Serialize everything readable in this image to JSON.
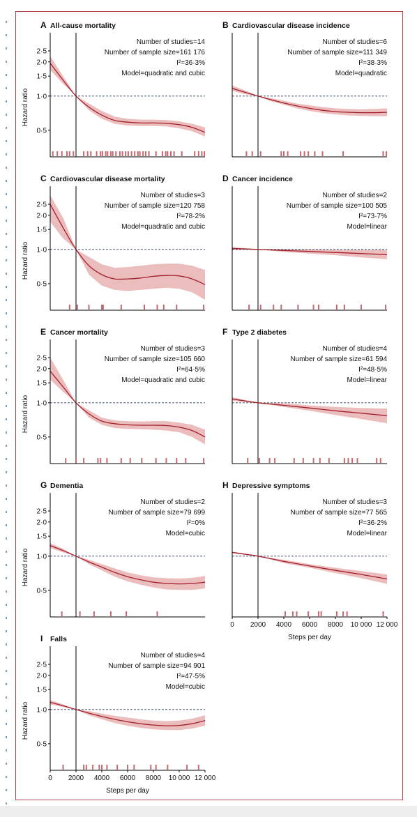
{
  "colors": {
    "curve": "#a31f2c",
    "band": "#e8b2b2",
    "rug": "#c26a70",
    "frame": "#b5404a",
    "reference": "#2c3e60"
  },
  "chart_data": [
    {
      "type": "line",
      "letter": "A",
      "title": "All-cause mortality",
      "stats": [
        "Number of studies=14",
        "Number of sample size=161 176",
        "I²=36·3%",
        "Model=quadratic and cubic"
      ],
      "ylabel": "Hazard ratio",
      "xlabel": "",
      "log_y": true,
      "ylim": [
        0.3,
        2.8
      ],
      "xlim": [
        0,
        12000
      ],
      "reference_x": 2000,
      "reference_y": 1.0,
      "yticks": [
        0.5,
        1.0,
        1.5,
        2.0,
        2.5
      ],
      "ytick_labels": [
        "0·5",
        "1·0",
        "1·5",
        "2·0",
        "2·5"
      ],
      "xticks": [],
      "xtick_labels": [],
      "x": [
        0,
        1000,
        2000,
        3000,
        4000,
        5000,
        6000,
        7000,
        8000,
        9000,
        10000,
        11000,
        12000
      ],
      "hr": [
        1.95,
        1.38,
        1.0,
        0.8,
        0.68,
        0.61,
        0.59,
        0.58,
        0.58,
        0.575,
        0.56,
        0.53,
        0.48
      ],
      "lower": [
        1.7,
        1.28,
        1.0,
        0.75,
        0.63,
        0.57,
        0.55,
        0.545,
        0.545,
        0.54,
        0.52,
        0.49,
        0.44
      ],
      "upper": [
        2.25,
        1.5,
        1.0,
        0.86,
        0.74,
        0.66,
        0.63,
        0.62,
        0.62,
        0.615,
        0.6,
        0.57,
        0.53
      ],
      "rug": [
        200,
        550,
        900,
        1300,
        1500,
        1800,
        2600,
        2900,
        3150,
        3600,
        3900,
        4050,
        4300,
        4450,
        4700,
        4850,
        5100,
        5400,
        5600,
        5850,
        6050,
        6300,
        6550,
        6800,
        6950,
        7200,
        7400,
        7650,
        8200,
        8700,
        8950,
        9100,
        9350,
        9600,
        10200,
        11200,
        11500,
        11750,
        11950
      ]
    },
    {
      "type": "line",
      "letter": "B",
      "title": "Cardiovascular disease incidence",
      "stats": [
        "Number of studies=6",
        "Number of sample size=111 349",
        "I²=38·3%",
        "Model=quadratic"
      ],
      "ylabel": "",
      "xlabel": "",
      "log_y": true,
      "ylim": [
        0.3,
        2.8
      ],
      "xlim": [
        0,
        12000
      ],
      "reference_x": 2000,
      "reference_y": 1.0,
      "yticks": [],
      "ytick_labels": [],
      "xticks": [],
      "xtick_labels": [],
      "x": [
        0,
        1000,
        2000,
        3000,
        4000,
        5000,
        6000,
        7000,
        8000,
        9000,
        10000,
        11000,
        12000
      ],
      "hr": [
        1.17,
        1.08,
        1.0,
        0.93,
        0.87,
        0.82,
        0.78,
        0.75,
        0.73,
        0.72,
        0.715,
        0.715,
        0.72
      ],
      "lower": [
        1.11,
        1.04,
        1.0,
        0.9,
        0.84,
        0.78,
        0.74,
        0.71,
        0.69,
        0.675,
        0.67,
        0.665,
        0.665
      ],
      "upper": [
        1.24,
        1.12,
        1.0,
        0.96,
        0.91,
        0.86,
        0.83,
        0.8,
        0.78,
        0.77,
        0.765,
        0.77,
        0.78
      ],
      "rug": [
        1100,
        1550,
        2200,
        3800,
        4000,
        4300,
        5300,
        5600,
        5900,
        6400,
        7000,
        8600,
        11700,
        11950
      ]
    },
    {
      "type": "line",
      "letter": "C",
      "title": "Cardiovascular disease mortality",
      "stats": [
        "Number of studies=3",
        "Number of sample size=120 758",
        "I²=78·2%",
        "Model=quadratic and cubic"
      ],
      "ylabel": "Hazard ratio",
      "xlabel": "",
      "log_y": true,
      "ylim": [
        0.3,
        2.8
      ],
      "xlim": [
        0,
        12000
      ],
      "reference_x": 2000,
      "reference_y": 1.0,
      "yticks": [
        0.5,
        1.0,
        1.5,
        2.0,
        2.5
      ],
      "ytick_labels": [
        "0·5",
        "1·0",
        "1·5",
        "2·0",
        "2·5"
      ],
      "xticks": [],
      "xtick_labels": [],
      "x": [
        0,
        1000,
        2000,
        3000,
        4000,
        5000,
        6000,
        7000,
        8000,
        9000,
        10000,
        11000,
        12000
      ],
      "hr": [
        2.5,
        1.55,
        1.0,
        0.72,
        0.6,
        0.55,
        0.55,
        0.56,
        0.58,
        0.59,
        0.585,
        0.55,
        0.49
      ],
      "lower": [
        1.75,
        1.25,
        1.0,
        0.6,
        0.48,
        0.44,
        0.43,
        0.44,
        0.45,
        0.46,
        0.45,
        0.42,
        0.36
      ],
      "upper": [
        3.0,
        1.9,
        1.0,
        0.86,
        0.74,
        0.69,
        0.7,
        0.72,
        0.74,
        0.75,
        0.75,
        0.72,
        0.66
      ],
      "rug": [
        1500,
        2100,
        3000,
        4000,
        4100,
        5500,
        7300,
        8300,
        8800,
        9800,
        11900
      ]
    },
    {
      "type": "line",
      "letter": "D",
      "title": "Cancer incidence",
      "stats": [
        "Number of studies=2",
        "Number of sample size=100 505",
        "I²=73·7%",
        "Model=linear"
      ],
      "ylabel": "",
      "xlabel": "",
      "log_y": true,
      "ylim": [
        0.3,
        2.8
      ],
      "xlim": [
        0,
        12000
      ],
      "reference_x": 2000,
      "reference_y": 1.0,
      "yticks": [],
      "ytick_labels": [],
      "xticks": [],
      "xtick_labels": [],
      "x": [
        0,
        2000,
        4000,
        6000,
        8000,
        10000,
        12000
      ],
      "hr": [
        1.02,
        1.0,
        0.98,
        0.96,
        0.94,
        0.92,
        0.9
      ],
      "lower": [
        0.99,
        1.0,
        0.95,
        0.92,
        0.89,
        0.85,
        0.82
      ],
      "upper": [
        1.05,
        1.0,
        1.01,
        1.0,
        0.99,
        0.99,
        0.99
      ],
      "rug": [
        1300,
        2200,
        3200,
        3800,
        5100,
        6300,
        6700,
        8100,
        8700,
        10000,
        11900
      ]
    },
    {
      "type": "line",
      "letter": "E",
      "title": "Cancer mortality",
      "stats": [
        "Number of studies=3",
        "Number of sample size=105 660",
        "I²=64·5%",
        "Model=quadratic and cubic"
      ],
      "ylabel": "Hazard ratio",
      "xlabel": "",
      "log_y": true,
      "ylim": [
        0.3,
        2.8
      ],
      "xlim": [
        0,
        12000
      ],
      "reference_x": 2000,
      "reference_y": 1.0,
      "yticks": [
        0.5,
        1.0,
        1.5,
        2.0,
        2.5
      ],
      "ytick_labels": [
        "0·5",
        "1·0",
        "1·5",
        "2·0",
        "2·5"
      ],
      "xticks": [],
      "xtick_labels": [],
      "x": [
        0,
        1000,
        2000,
        3000,
        4000,
        5000,
        6000,
        7000,
        8000,
        9000,
        10000,
        11000,
        12000
      ],
      "hr": [
        1.9,
        1.38,
        1.0,
        0.8,
        0.69,
        0.655,
        0.64,
        0.635,
        0.635,
        0.63,
        0.61,
        0.57,
        0.5
      ],
      "lower": [
        1.6,
        1.25,
        1.0,
        0.74,
        0.64,
        0.6,
        0.59,
        0.585,
        0.58,
        0.57,
        0.55,
        0.5,
        0.43
      ],
      "upper": [
        2.5,
        1.6,
        1.0,
        0.86,
        0.74,
        0.7,
        0.69,
        0.685,
        0.69,
        0.69,
        0.67,
        0.64,
        0.58
      ],
      "rug": [
        1200,
        2000,
        2600,
        3700,
        3900,
        4400,
        5500,
        6200,
        7100,
        8200,
        9000,
        9800,
        10500,
        11900
      ]
    },
    {
      "type": "line",
      "letter": "F",
      "title": "Type 2 diabetes",
      "stats": [
        "Number of studies=4",
        "Number of sample size=61 594",
        "I²=48·5%",
        "Model=linear"
      ],
      "ylabel": "",
      "xlabel": "",
      "log_y": true,
      "ylim": [
        0.3,
        2.8
      ],
      "xlim": [
        0,
        12000
      ],
      "reference_x": 2000,
      "reference_y": 1.0,
      "yticks": [],
      "ytick_labels": [],
      "xticks": [],
      "xtick_labels": [],
      "x": [
        0,
        2000,
        4000,
        6000,
        8000,
        10000,
        12000
      ],
      "hr": [
        1.08,
        1.0,
        0.95,
        0.9,
        0.85,
        0.81,
        0.77
      ],
      "lower": [
        1.04,
        1.0,
        0.92,
        0.85,
        0.78,
        0.72,
        0.66
      ],
      "upper": [
        1.12,
        1.0,
        0.99,
        0.95,
        0.92,
        0.9,
        0.89
      ],
      "rug": [
        1200,
        2100,
        2900,
        3300,
        4800,
        5500,
        6300,
        6800,
        7500,
        8700,
        9000,
        9300,
        9700,
        11200,
        11500
      ]
    },
    {
      "type": "line",
      "letter": "G",
      "title": "Dementia",
      "stats": [
        "Number of studies=2",
        "Number of sample size=79 699",
        "I²=0%",
        "Model=cubic"
      ],
      "ylabel": "Hazard ratio",
      "xlabel": "",
      "log_y": true,
      "ylim": [
        0.3,
        2.8
      ],
      "xlim": [
        0,
        12000
      ],
      "reference_x": 2000,
      "reference_y": 1.0,
      "yticks": [
        0.5,
        1.0,
        1.5,
        2.0,
        2.5
      ],
      "ytick_labels": [
        "0·5",
        "1·0",
        "1·5",
        "2·0",
        "2·5"
      ],
      "xticks": [],
      "xtick_labels": [],
      "x": [
        0,
        1000,
        2000,
        3000,
        4000,
        5000,
        6000,
        7000,
        8000,
        9000,
        10000,
        11000,
        12000
      ],
      "hr": [
        1.24,
        1.12,
        1.0,
        0.89,
        0.8,
        0.72,
        0.66,
        0.62,
        0.59,
        0.575,
        0.57,
        0.575,
        0.59
      ],
      "lower": [
        1.18,
        1.08,
        1.0,
        0.85,
        0.75,
        0.66,
        0.6,
        0.56,
        0.53,
        0.51,
        0.505,
        0.505,
        0.52
      ],
      "upper": [
        1.3,
        1.16,
        1.0,
        0.93,
        0.85,
        0.78,
        0.72,
        0.68,
        0.65,
        0.64,
        0.635,
        0.645,
        0.67
      ],
      "rug": [
        900,
        2300,
        3400,
        4700,
        5900,
        8300
      ]
    },
    {
      "type": "line",
      "letter": "H",
      "title": "Depressive symptoms",
      "stats": [
        "Number of studies=3",
        "Number of sample size=77 565",
        "I²=36·2%",
        "Model=linear"
      ],
      "ylabel": "",
      "xlabel": "Steps per day",
      "log_y": true,
      "ylim": [
        0.3,
        2.8
      ],
      "xlim": [
        0,
        12000
      ],
      "reference_x": 2000,
      "reference_y": 1.0,
      "yticks": [],
      "ytick_labels": [],
      "xticks": [
        0,
        2000,
        4000,
        6000,
        8000,
        10000,
        12000
      ],
      "xtick_labels": [
        "0",
        "2000",
        "4000",
        "6000",
        "8000",
        "10 000",
        "12 000"
      ],
      "x": [
        0,
        2000,
        4000,
        6000,
        8000,
        10000,
        12000
      ],
      "hr": [
        1.08,
        1.0,
        0.9,
        0.82,
        0.75,
        0.69,
        0.63
      ],
      "lower": [
        1.06,
        1.0,
        0.87,
        0.79,
        0.71,
        0.64,
        0.57
      ],
      "upper": [
        1.1,
        1.0,
        0.93,
        0.85,
        0.79,
        0.74,
        0.69
      ],
      "rug": [
        4100,
        4700,
        5000,
        5900,
        6700,
        6900,
        8100,
        8600,
        8900,
        11700
      ]
    },
    {
      "type": "line",
      "letter": "I",
      "title": "Falls",
      "stats": [
        "Number of studies=4",
        "Number of sample size=94 901",
        "I²=47·5%",
        "Model=cubic"
      ],
      "ylabel": "Hazard ratio",
      "xlabel": "Steps per day",
      "log_y": true,
      "ylim": [
        0.3,
        2.8
      ],
      "xlim": [
        0,
        12000
      ],
      "reference_x": 2000,
      "reference_y": 1.0,
      "yticks": [
        0.5,
        1.0,
        1.5,
        2.0,
        2.5
      ],
      "ytick_labels": [
        "0·5",
        "1·0",
        "1·5",
        "2·0",
        "2·5"
      ],
      "xticks": [
        0,
        2000,
        4000,
        6000,
        8000,
        10000,
        12000
      ],
      "xtick_labels": [
        "0",
        "2000",
        "4000",
        "6000",
        "8000",
        "10 000",
        "12 000"
      ],
      "x": [
        0,
        1000,
        2000,
        3000,
        4000,
        5000,
        6000,
        7000,
        8000,
        9000,
        10000,
        11000,
        12000
      ],
      "hr": [
        1.16,
        1.08,
        1.0,
        0.93,
        0.87,
        0.82,
        0.78,
        0.75,
        0.73,
        0.72,
        0.725,
        0.75,
        0.8
      ],
      "lower": [
        1.11,
        1.05,
        1.0,
        0.89,
        0.82,
        0.76,
        0.72,
        0.69,
        0.67,
        0.66,
        0.66,
        0.68,
        0.72
      ],
      "upper": [
        1.21,
        1.11,
        1.0,
        0.97,
        0.92,
        0.88,
        0.85,
        0.82,
        0.8,
        0.79,
        0.8,
        0.83,
        0.89
      ],
      "rug": [
        1000,
        2600,
        2800,
        3300,
        3800,
        4000,
        4400,
        5200,
        6000,
        6500,
        7800,
        8200,
        9100,
        10600,
        11500
      ]
    }
  ]
}
